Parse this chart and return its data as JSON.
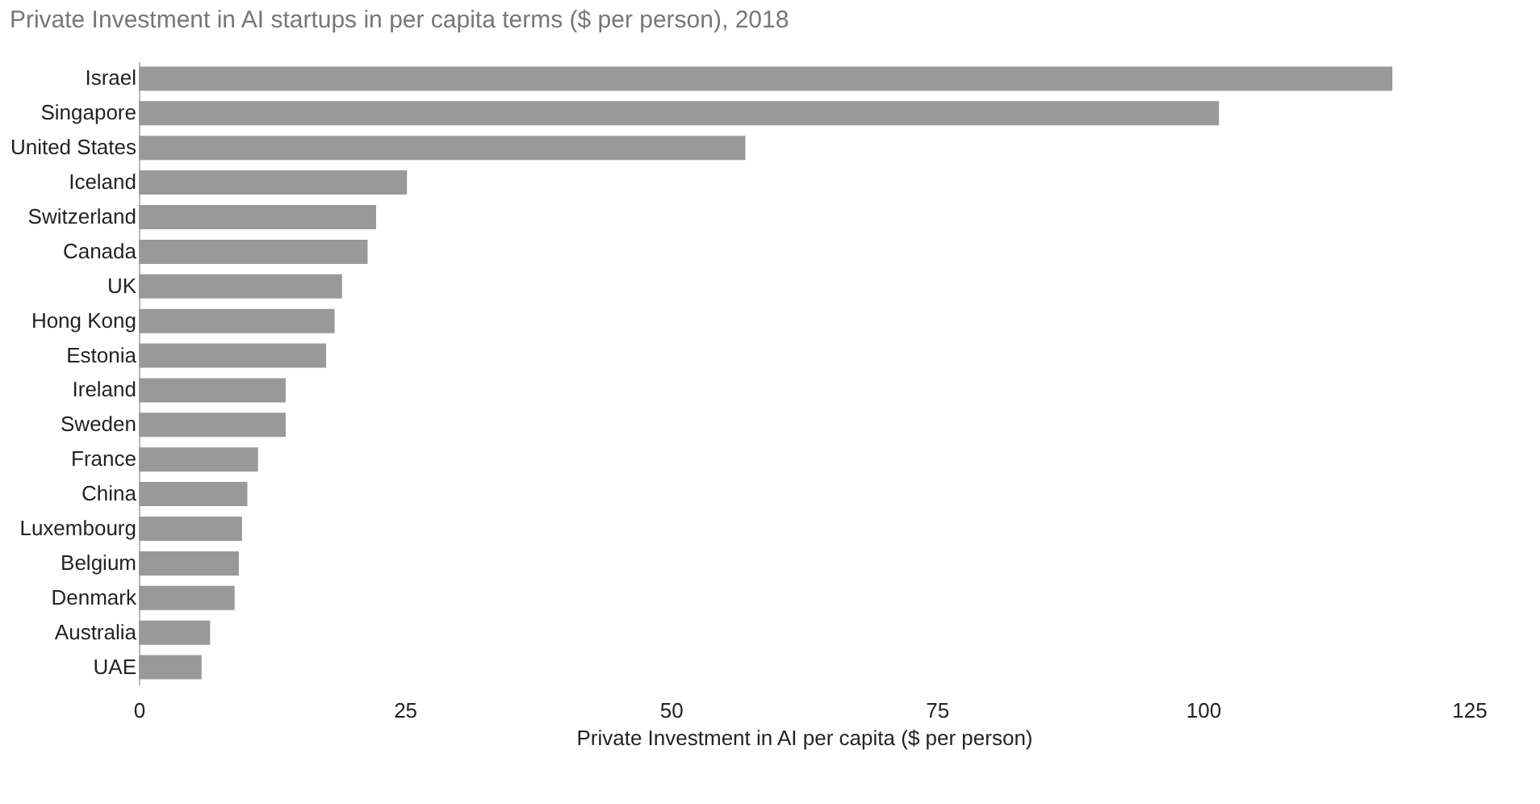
{
  "chart_data": {
    "type": "bar",
    "orientation": "horizontal",
    "title": "Private Investment in AI startups in per capita terms ($ per person), 2018",
    "xlabel": "Private Investment in AI per capita ($ per person)",
    "categories": [
      "Israel",
      "Singapore",
      "United States",
      "Iceland",
      "Switzerland",
      "Canada",
      "UK",
      "Hong Kong",
      "Estonia",
      "Ireland",
      "Sweden",
      "France",
      "China",
      "Luxembourg",
      "Belgium",
      "Denmark",
      "Australia",
      "UAE"
    ],
    "values": [
      117.8,
      101.5,
      57,
      25.2,
      22.3,
      21.5,
      19.1,
      18.4,
      17.6,
      13.8,
      13.8,
      11.2,
      10.2,
      9.7,
      9.4,
      9.0,
      6.7,
      5.9
    ],
    "color": "#999999",
    "xlim": [
      0,
      125
    ],
    "xticks": [
      0,
      25,
      50,
      75,
      100,
      125
    ],
    "grid": false
  }
}
